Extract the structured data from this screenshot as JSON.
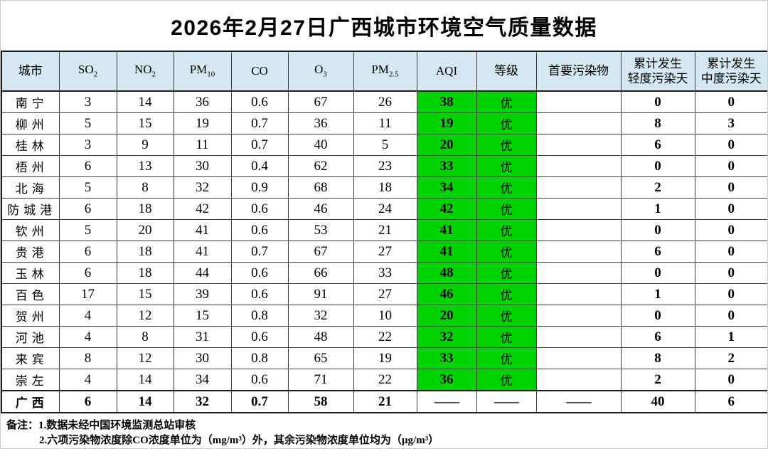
{
  "title": "2026年2月27日广西城市环境空气质量数据",
  "colors": {
    "header_bg": "#d5e7f1",
    "excellent_green": "#00d300"
  },
  "table": {
    "columns": [
      {
        "key": "city",
        "label": "城市"
      },
      {
        "key": "so2",
        "label": "SO",
        "sub": "2"
      },
      {
        "key": "no2",
        "label": "NO",
        "sub": "2"
      },
      {
        "key": "pm10",
        "label": "PM",
        "sub": "10"
      },
      {
        "key": "co",
        "label": "CO"
      },
      {
        "key": "o3",
        "label": "O",
        "sub": "3"
      },
      {
        "key": "pm25",
        "label": "PM",
        "sub": "2.5"
      },
      {
        "key": "aqi",
        "label": "AQI"
      },
      {
        "key": "grade",
        "label": "等级"
      },
      {
        "key": "pollutant",
        "label": "首要污染物"
      },
      {
        "key": "light",
        "label": "累计发生",
        "label2": "轻度污染天"
      },
      {
        "key": "moderate",
        "label": "累计发生",
        "label2": "中度污染天"
      }
    ],
    "rows": [
      {
        "city": "南宁",
        "so2": "3",
        "no2": "14",
        "pm10": "36",
        "co": "0.6",
        "o3": "67",
        "pm25": "26",
        "aqi": "38",
        "grade": "优",
        "pollutant": "",
        "light": "0",
        "moderate": "0"
      },
      {
        "city": "柳州",
        "so2": "5",
        "no2": "15",
        "pm10": "19",
        "co": "0.7",
        "o3": "36",
        "pm25": "11",
        "aqi": "19",
        "grade": "优",
        "pollutant": "",
        "light": "8",
        "moderate": "3"
      },
      {
        "city": "桂林",
        "so2": "3",
        "no2": "9",
        "pm10": "11",
        "co": "0.7",
        "o3": "40",
        "pm25": "5",
        "aqi": "20",
        "grade": "优",
        "pollutant": "",
        "light": "6",
        "moderate": "0"
      },
      {
        "city": "梧州",
        "so2": "6",
        "no2": "13",
        "pm10": "30",
        "co": "0.4",
        "o3": "62",
        "pm25": "23",
        "aqi": "33",
        "grade": "优",
        "pollutant": "",
        "light": "0",
        "moderate": "0"
      },
      {
        "city": "北海",
        "so2": "5",
        "no2": "8",
        "pm10": "32",
        "co": "0.9",
        "o3": "68",
        "pm25": "18",
        "aqi": "34",
        "grade": "优",
        "pollutant": "",
        "light": "2",
        "moderate": "0"
      },
      {
        "city": "防城港",
        "so2": "6",
        "no2": "18",
        "pm10": "42",
        "co": "0.6",
        "o3": "46",
        "pm25": "24",
        "aqi": "42",
        "grade": "优",
        "pollutant": "",
        "light": "1",
        "moderate": "0"
      },
      {
        "city": "钦州",
        "so2": "5",
        "no2": "20",
        "pm10": "41",
        "co": "0.6",
        "o3": "53",
        "pm25": "21",
        "aqi": "41",
        "grade": "优",
        "pollutant": "",
        "light": "0",
        "moderate": "0"
      },
      {
        "city": "贵港",
        "so2": "6",
        "no2": "18",
        "pm10": "41",
        "co": "0.7",
        "o3": "67",
        "pm25": "27",
        "aqi": "41",
        "grade": "优",
        "pollutant": "",
        "light": "6",
        "moderate": "0"
      },
      {
        "city": "玉林",
        "so2": "6",
        "no2": "18",
        "pm10": "44",
        "co": "0.6",
        "o3": "66",
        "pm25": "33",
        "aqi": "48",
        "grade": "优",
        "pollutant": "",
        "light": "0",
        "moderate": "0"
      },
      {
        "city": "百色",
        "so2": "17",
        "no2": "15",
        "pm10": "39",
        "co": "0.6",
        "o3": "91",
        "pm25": "27",
        "aqi": "46",
        "grade": "优",
        "pollutant": "",
        "light": "1",
        "moderate": "0"
      },
      {
        "city": "贺州",
        "so2": "4",
        "no2": "12",
        "pm10": "15",
        "co": "0.8",
        "o3": "32",
        "pm25": "10",
        "aqi": "20",
        "grade": "优",
        "pollutant": "",
        "light": "0",
        "moderate": "0"
      },
      {
        "city": "河池",
        "so2": "4",
        "no2": "8",
        "pm10": "31",
        "co": "0.6",
        "o3": "48",
        "pm25": "22",
        "aqi": "32",
        "grade": "优",
        "pollutant": "",
        "light": "6",
        "moderate": "1"
      },
      {
        "city": "来宾",
        "so2": "8",
        "no2": "12",
        "pm10": "30",
        "co": "0.8",
        "o3": "65",
        "pm25": "19",
        "aqi": "33",
        "grade": "优",
        "pollutant": "",
        "light": "8",
        "moderate": "2"
      },
      {
        "city": "崇左",
        "so2": "4",
        "no2": "14",
        "pm10": "34",
        "co": "0.6",
        "o3": "71",
        "pm25": "22",
        "aqi": "36",
        "grade": "优",
        "pollutant": "",
        "light": "2",
        "moderate": "0"
      },
      {
        "city": "广西",
        "so2": "6",
        "no2": "14",
        "pm10": "32",
        "co": "0.7",
        "o3": "58",
        "pm25": "21",
        "aqi": "——",
        "grade": "——",
        "pollutant": "——",
        "light": "40",
        "moderate": "6",
        "is_total": true
      }
    ]
  },
  "notes": {
    "label": "备注：",
    "line1": "1.数据未经中国环境监测总站审核",
    "line2": "2.六项污染物浓度除CO浓度单位为（mg/m³）外，其余污染物浓度单位均为（µg/m³）"
  }
}
